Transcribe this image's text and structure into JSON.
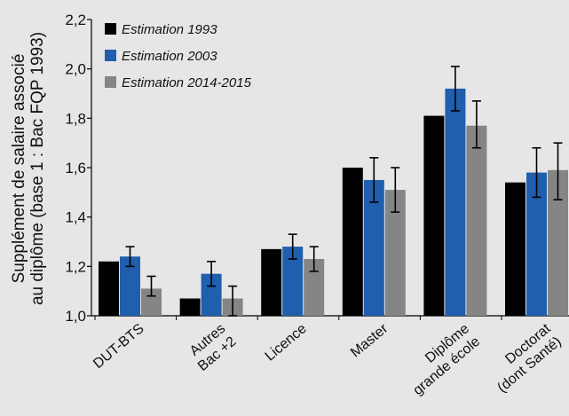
{
  "chart_data": {
    "type": "bar",
    "title": "",
    "ylabel_lines": [
      "Supplément de salaire associé",
      "au diplôme (base 1 : Bac FQP 1993)"
    ],
    "ylim": [
      1.0,
      2.2
    ],
    "yticks": [
      "1,0",
      "1,2",
      "1,4",
      "1,6",
      "1,8",
      "2,0",
      "2,2"
    ],
    "ytick_values": [
      1.0,
      1.2,
      1.4,
      1.6,
      1.8,
      2.0,
      2.2
    ],
    "grid": false,
    "legend_position": "top-left",
    "categories": [
      [
        "DUT-BTS"
      ],
      [
        "Autres",
        "Bac +2"
      ],
      [
        "Licence"
      ],
      [
        "Master"
      ],
      [
        "Diplôme",
        "grande école"
      ],
      [
        "Doctorat",
        "(dont Santé)"
      ]
    ],
    "series": [
      {
        "name": "Estimation 1993",
        "color": "#000000",
        "values": [
          1.22,
          1.07,
          1.27,
          1.6,
          1.81,
          1.54
        ],
        "error_low": null,
        "error_high": null
      },
      {
        "name": "Estimation 2003",
        "color": "#1f5fae",
        "values": [
          1.24,
          1.17,
          1.28,
          1.55,
          1.92,
          1.58
        ],
        "error_low": [
          1.2,
          1.12,
          1.23,
          1.46,
          1.83,
          1.48
        ],
        "error_high": [
          1.28,
          1.22,
          1.33,
          1.64,
          2.01,
          1.68
        ]
      },
      {
        "name": "Estimation 2014-2015",
        "color": "#858585",
        "values": [
          1.11,
          1.07,
          1.23,
          1.51,
          1.77,
          1.59
        ],
        "error_low": [
          1.08,
          1.0,
          1.18,
          1.42,
          1.68,
          1.47
        ],
        "error_high": [
          1.16,
          1.12,
          1.28,
          1.6,
          1.87,
          1.7
        ]
      }
    ]
  }
}
